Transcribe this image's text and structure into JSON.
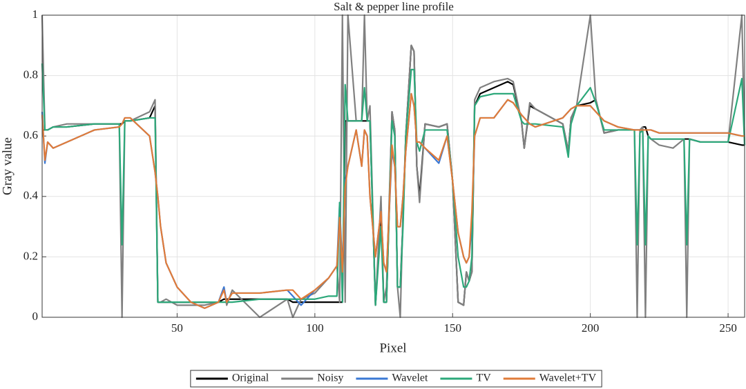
{
  "chart_data": {
    "type": "line",
    "title": "Salt & pepper line profile",
    "x_label": "Pixel",
    "y_label": "Gray value",
    "xlim": [
      1,
      256
    ],
    "xticks": [
      50,
      100,
      150,
      200,
      250
    ],
    "ylim": [
      0,
      1
    ],
    "yticks": [
      0,
      0.2,
      0.4,
      0.6,
      0.8,
      1
    ],
    "grid": true,
    "legend": "bottom",
    "x": [
      1,
      2,
      3,
      5,
      10,
      20,
      29,
      30,
      31,
      33,
      40,
      42,
      43,
      44,
      46,
      50,
      55,
      60,
      65,
      67,
      68,
      70,
      80,
      90,
      92,
      95,
      100,
      105,
      108,
      109,
      110,
      111,
      112,
      115,
      117,
      118,
      119,
      120,
      122,
      124,
      125,
      126,
      128,
      129,
      130,
      131,
      132,
      133,
      135,
      136,
      137,
      138,
      140,
      145,
      148,
      150,
      152,
      154,
      155,
      156,
      157,
      158,
      160,
      165,
      170,
      172,
      175,
      176,
      178,
      180,
      190,
      192,
      193,
      195,
      200,
      202,
      205,
      210,
      216,
      217,
      218,
      219,
      220,
      221,
      222,
      225,
      230,
      234,
      235,
      236,
      240,
      250,
      255,
      256
    ],
    "series": [
      {
        "name": "Original",
        "color": "#000000",
        "values": [
          0.62,
          0.62,
          0.62,
          0.63,
          0.63,
          0.64,
          0.64,
          0.64,
          0.65,
          0.65,
          0.66,
          0.7,
          0.05,
          0.05,
          0.05,
          0.05,
          0.05,
          0.05,
          0.05,
          0.06,
          0.06,
          0.06,
          0.06,
          0.06,
          0.05,
          0.05,
          0.05,
          0.05,
          0.05,
          0.05,
          0.05,
          0.65,
          0.65,
          0.65,
          0.65,
          0.65,
          0.65,
          0.65,
          0.04,
          0.35,
          0.05,
          0.05,
          0.68,
          0.62,
          0.1,
          0.1,
          0.32,
          0.6,
          0.9,
          0.88,
          0.5,
          0.4,
          0.64,
          0.63,
          0.64,
          0.45,
          0.05,
          0.04,
          0.15,
          0.12,
          0.15,
          0.7,
          0.74,
          0.76,
          0.78,
          0.77,
          0.65,
          0.56,
          0.7,
          0.69,
          0.64,
          0.55,
          0.66,
          0.7,
          0.71,
          0.72,
          0.61,
          0.62,
          0.62,
          0.62,
          0.62,
          0.63,
          0.63,
          0.6,
          0.59,
          0.59,
          0.59,
          0.59,
          0.59,
          0.59,
          0.58,
          0.58,
          0.57,
          0.57
        ]
      },
      {
        "name": "Noisy",
        "color": "#808080",
        "values": [
          1,
          0.62,
          0.62,
          0.63,
          0.64,
          0.64,
          0.64,
          0,
          0.65,
          0.65,
          0.68,
          0.72,
          0.05,
          0.05,
          0.06,
          0.04,
          0.04,
          0.04,
          0.05,
          0.1,
          0.04,
          0.09,
          0,
          0.06,
          0,
          0.06,
          0.08,
          0.13,
          0.17,
          0.05,
          1,
          0.05,
          1,
          0.65,
          0.65,
          1,
          0.65,
          0.7,
          0.04,
          0.4,
          0.05,
          0.1,
          0.68,
          0.62,
          0.1,
          0,
          0.35,
          0.6,
          0.9,
          0.88,
          0.5,
          0.38,
          0.64,
          0.63,
          0.64,
          0.45,
          0.05,
          0.04,
          0.15,
          0.12,
          0.15,
          0.72,
          0.76,
          0.78,
          0.79,
          0.78,
          0.65,
          0.56,
          0.71,
          0.69,
          0.64,
          0.55,
          0.66,
          0.7,
          1,
          0.72,
          0.61,
          0.62,
          0.62,
          0,
          0.62,
          0.63,
          0,
          0.6,
          0.59,
          0.57,
          0.56,
          0.59,
          0,
          0.59,
          0.58,
          0.58,
          1,
          0.57
        ]
      },
      {
        "name": "Wavelet",
        "color": "#3a78d4",
        "values": [
          0.68,
          0.51,
          0.58,
          0.56,
          0.58,
          0.62,
          0.63,
          0.64,
          0.66,
          0.66,
          0.6,
          0.48,
          0.4,
          0.3,
          0.18,
          0.1,
          0.05,
          0.03,
          0.05,
          0.1,
          0.05,
          0.08,
          0.08,
          0.09,
          0.07,
          0.04,
          0.09,
          0.13,
          0.17,
          0.38,
          0.15,
          0.45,
          0.5,
          0.62,
          0.5,
          0.62,
          0.6,
          0.4,
          0.2,
          0.35,
          0.18,
          0.15,
          0.55,
          0.5,
          0.3,
          0.3,
          0.4,
          0.55,
          0.74,
          0.7,
          0.58,
          0.58,
          0.56,
          0.51,
          0.6,
          0.45,
          0.28,
          0.2,
          0.18,
          0.2,
          0.3,
          0.6,
          0.66,
          0.66,
          0.72,
          0.71,
          0.67,
          0.66,
          0.64,
          0.63,
          0.66,
          0.68,
          0.69,
          0.7,
          0.7,
          0.68,
          0.65,
          0.63,
          0.62,
          0.62,
          0.62,
          0.62,
          0.62,
          0.62,
          0.62,
          0.61,
          0.61,
          0.61,
          0.61,
          0.61,
          0.61,
          0.61,
          0.6,
          0.6
        ]
      },
      {
        "name": "TV",
        "color": "#2ca87a",
        "values": [
          0.84,
          0.62,
          0.62,
          0.63,
          0.63,
          0.64,
          0.64,
          0.24,
          0.65,
          0.65,
          0.66,
          0.66,
          0.05,
          0.05,
          0.05,
          0.05,
          0.05,
          0.05,
          0.05,
          0.05,
          0.05,
          0.05,
          0.06,
          0.06,
          0.06,
          0.06,
          0.06,
          0.07,
          0.07,
          0.38,
          0.05,
          0.77,
          0.65,
          0.65,
          0.65,
          0.76,
          0.65,
          0.65,
          0.04,
          0.3,
          0.05,
          0.05,
          0.65,
          0.6,
          0.1,
          0.1,
          0.3,
          0.6,
          0.82,
          0.82,
          0.58,
          0.55,
          0.62,
          0.62,
          0.62,
          0.45,
          0.2,
          0.1,
          0.1,
          0.12,
          0.2,
          0.7,
          0.73,
          0.74,
          0.74,
          0.74,
          0.65,
          0.64,
          0.64,
          0.64,
          0.63,
          0.53,
          0.64,
          0.7,
          0.76,
          0.71,
          0.62,
          0.62,
          0.62,
          0.24,
          0.61,
          0.62,
          0.24,
          0.6,
          0.59,
          0.59,
          0.59,
          0.59,
          0.24,
          0.59,
          0.58,
          0.58,
          0.79,
          0.57
        ]
      },
      {
        "name": "Wavelet+TV",
        "color": "#e07b39",
        "values": [
          0.67,
          0.52,
          0.58,
          0.56,
          0.58,
          0.62,
          0.63,
          0.64,
          0.66,
          0.66,
          0.6,
          0.48,
          0.4,
          0.3,
          0.18,
          0.1,
          0.05,
          0.03,
          0.05,
          0.09,
          0.05,
          0.08,
          0.08,
          0.09,
          0.09,
          0.06,
          0.09,
          0.13,
          0.17,
          0.33,
          0.15,
          0.43,
          0.5,
          0.62,
          0.5,
          0.62,
          0.6,
          0.4,
          0.2,
          0.35,
          0.18,
          0.15,
          0.57,
          0.5,
          0.3,
          0.3,
          0.4,
          0.55,
          0.74,
          0.7,
          0.58,
          0.58,
          0.56,
          0.52,
          0.6,
          0.45,
          0.28,
          0.2,
          0.18,
          0.2,
          0.35,
          0.6,
          0.66,
          0.66,
          0.72,
          0.71,
          0.67,
          0.66,
          0.64,
          0.63,
          0.66,
          0.68,
          0.69,
          0.7,
          0.7,
          0.68,
          0.65,
          0.63,
          0.62,
          0.62,
          0.62,
          0.62,
          0.62,
          0.62,
          0.62,
          0.61,
          0.61,
          0.61,
          0.61,
          0.61,
          0.61,
          0.61,
          0.6,
          0.6
        ]
      }
    ]
  }
}
